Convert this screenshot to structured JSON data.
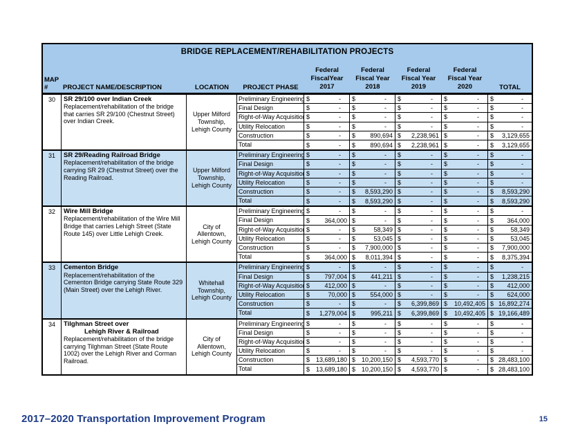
{
  "colors": {
    "band": "#a5caeb",
    "row_shade": "#c7dff3",
    "footer_navy": "#1e3c87"
  },
  "footer": {
    "left": "2017–2020 Transportation Improvement Program",
    "right_page_number": "15"
  },
  "table": {
    "title": "BRIDGE REPLACEMENT/REHABILITATION PROJECTS",
    "currency_symbol": "$",
    "headers": {
      "map": [
        "MAP",
        "#"
      ],
      "name": "PROJECT NAME/DESCRIPTION",
      "location": "LOCATION",
      "phase": "PROJECT PHASE",
      "years": [
        [
          "Federal",
          "FiscalYear",
          "2017"
        ],
        [
          "Federal",
          "Fiscal Year",
          "2018"
        ],
        [
          "Federal",
          "Fiscal Year",
          "2019"
        ],
        [
          "Federal",
          "Fiscal Year",
          "2020"
        ]
      ],
      "total": "TOTAL"
    },
    "projects": [
      {
        "map": "30",
        "title_lines": [
          "SR 29/100 over Indian Creek"
        ],
        "description": "Replacement/rehabilitation of the bridge that carries SR 29/100 (Chestnut Street) over Indian Creek.",
        "location": "Upper Milford Township, Lehigh County",
        "shaded": false,
        "rows": [
          {
            "phase": "Preliminary Engineering",
            "values": [
              "-",
              "-",
              "-",
              "-",
              "-"
            ]
          },
          {
            "phase": "Final Design",
            "values": [
              "-",
              "-",
              "-",
              "-",
              "-"
            ]
          },
          {
            "phase": "Right-of-Way Acquisition",
            "values": [
              "-",
              "-",
              "-",
              "-",
              "-"
            ]
          },
          {
            "phase": "Utility Relocation",
            "values": [
              "-",
              "-",
              "-",
              "-",
              "-"
            ]
          },
          {
            "phase": "Construction",
            "values": [
              "-",
              "890,694",
              "2,238,961",
              "-",
              "3,129,655"
            ]
          },
          {
            "phase": "Total",
            "values": [
              "-",
              "890,694",
              "2,238,961",
              "-",
              "3,129,655"
            ]
          }
        ]
      },
      {
        "map": "31",
        "title_lines": [
          "SR 29/Reading Railroad Bridge"
        ],
        "description": "Replacement/rehabilitation of the bridge carrying SR 29 (Chestnut Street) over the Reading Railroad.",
        "location": "Upper Milford Township, Lehigh County",
        "shaded": true,
        "rows": [
          {
            "phase": "Preliminary Engineering",
            "values": [
              "-",
              "-",
              "-",
              "-",
              "-"
            ]
          },
          {
            "phase": "Final Design",
            "values": [
              "-",
              "-",
              "-",
              "-",
              "-"
            ]
          },
          {
            "phase": "Right-of-Way Acquisition",
            "values": [
              "-",
              "-",
              "-",
              "-",
              "-"
            ]
          },
          {
            "phase": "Utility Relocation",
            "values": [
              "-",
              "-",
              "-",
              "-",
              "-"
            ]
          },
          {
            "phase": "Construction",
            "values": [
              "-",
              "8,593,290",
              "-",
              "-",
              "8,593,290"
            ]
          },
          {
            "phase": "Total",
            "values": [
              "-",
              "8,593,290",
              "-",
              "-",
              "8,593,290"
            ]
          }
        ]
      },
      {
        "map": "32",
        "title_lines": [
          "Wire Mill Bridge"
        ],
        "description": "Replacement/rehabilitation of the Wire Mill Bridge that carries Lehigh Street (State Route 145) over Little Lehigh Creek.",
        "location": "City of Allentown, Lehigh County",
        "shaded": false,
        "rows": [
          {
            "phase": "Preliminary Engineering",
            "values": [
              "-",
              "-",
              "-",
              "-",
              "-"
            ]
          },
          {
            "phase": "Final Design",
            "values": [
              "364,000",
              "-",
              "-",
              "-",
              "364,000"
            ]
          },
          {
            "phase": "Right-of-Way Acquisition",
            "values": [
              "-",
              "58,349",
              "-",
              "-",
              "58,349"
            ]
          },
          {
            "phase": "Utility Relocation",
            "values": [
              "-",
              "53,045",
              "-",
              "-",
              "53,045"
            ]
          },
          {
            "phase": "Construction",
            "values": [
              "-",
              "7,900,000",
              "-",
              "-",
              "7,900,000"
            ]
          },
          {
            "phase": "Total",
            "values": [
              "364,000",
              "8,011,394",
              "-",
              "-",
              "8,375,394"
            ]
          }
        ]
      },
      {
        "map": "33",
        "title_lines": [
          "Cementon Bridge"
        ],
        "description": "Replacement/rehabilitation of the Cementon Bridge carrying State Route 329 (Main Street) over the Lehigh River.",
        "location": "Whitehall Township, Lehigh County",
        "shaded": true,
        "rows": [
          {
            "phase": "Preliminary Engineering",
            "values": [
              "-",
              "-",
              "-",
              "-",
              "-"
            ]
          },
          {
            "phase": "Final Design",
            "values": [
              "797,004",
              "441,211",
              "-",
              "-",
              "1,238,215"
            ]
          },
          {
            "phase": "Right-of-Way Acquisition",
            "values": [
              "412,000",
              "-",
              "-",
              "-",
              "412,000"
            ]
          },
          {
            "phase": "Utility Relocation",
            "values": [
              "70,000",
              "554,000",
              "-",
              "-",
              "624,000"
            ]
          },
          {
            "phase": "Construction",
            "values": [
              "-",
              "-",
              "6,399,869",
              "10,492,405",
              "16,892,274"
            ]
          },
          {
            "phase": "Total",
            "values": [
              "1,279,004",
              "995,211",
              "6,399,869",
              "10,492,405",
              "19,166,489"
            ]
          }
        ]
      },
      {
        "map": "34",
        "title_lines": [
          "Tilghman Street over",
          "Lehigh River & Railroad"
        ],
        "description": "Replacement/rehabilitation of the bridge carrying Tilghman Street (State Route 1002) over the Lehigh River and Corman Railroad.",
        "location": "City of Allentown, Lehigh County",
        "shaded": false,
        "rows": [
          {
            "phase": "Preliminary Engineering",
            "values": [
              "-",
              "-",
              "-",
              "-",
              "-"
            ]
          },
          {
            "phase": "Final Design",
            "values": [
              "-",
              "-",
              "-",
              "-",
              "-"
            ]
          },
          {
            "phase": "Right-of-Way Acquisition",
            "values": [
              "-",
              "-",
              "-",
              "-",
              "-"
            ]
          },
          {
            "phase": "Utility Relocation",
            "values": [
              "-",
              "-",
              "-",
              "-",
              "-"
            ]
          },
          {
            "phase": "Construction",
            "values": [
              "13,689,180",
              "10,200,150",
              "4,593,770",
              "-",
              "28,483,100"
            ]
          },
          {
            "phase": "Total",
            "values": [
              "13,689,180",
              "10,200,150",
              "4,593,770",
              "-",
              "28,483,100"
            ]
          }
        ]
      }
    ]
  }
}
